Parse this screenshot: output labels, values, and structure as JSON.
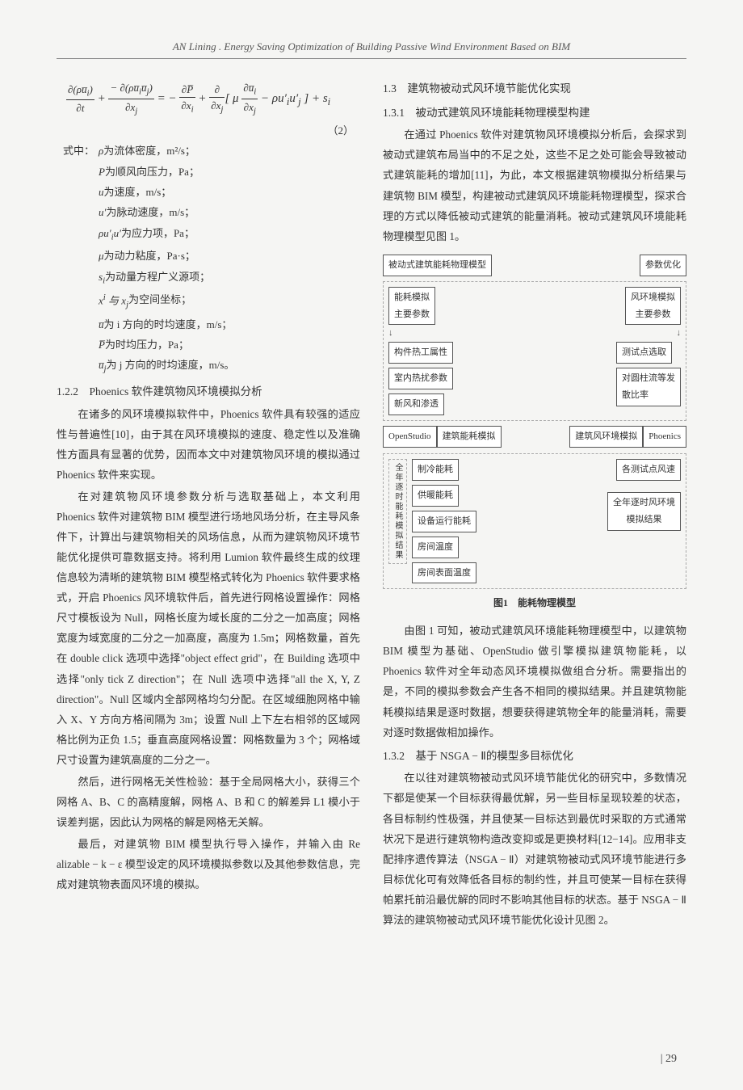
{
  "header": {
    "title": "AN Lining . Energy Saving Optimization of Building Passive Wind Environment Based on BIM"
  },
  "equation": {
    "formula_html": "<span class='frac'><span class='num'>∂(ρu̅<sub>i</sub>)</span><span class='den'>∂t</span></span> + <span class='frac'><span class='num'>− ∂(ρu̅<sub>i</sub>u̅<sub>j</sub>)</span><span class='den'>∂x<sub>j</sub></span></span> = − <span class='frac'><span class='num'>∂P̅</span><span class='den'>∂x<sub>i</sub></span></span> + <span class='frac'><span class='num'>∂</span><span class='den'>∂x<sub>j</sub></span></span>[ μ <span class='frac'><span class='num'>∂u̅<sub>i</sub></span><span class='den'>∂x<sub>j</sub></span></span> − ρu′<sub>i</sub>u′<sub>j</sub> ] + s<sub>i</sub>",
    "number": "（2）"
  },
  "defs": {
    "head": "式中：",
    "items": [
      {
        "sym": "ρ",
        "text": " 为流体密度，m²/s；"
      },
      {
        "sym": "P",
        "text": " 为顺风向压力，Pa；"
      },
      {
        "sym": "u",
        "text": " 为速度，m/s；"
      },
      {
        "sym": "u′",
        "text": "为脉动速度，m/s；"
      },
      {
        "sym": "ρu′<sub>i</sub>u′",
        "text": "为应力项，Pa；"
      },
      {
        "sym": "μ",
        "text": " 为动力粘度，Pa·s；"
      },
      {
        "sym": "s<sub>i</sub>",
        "text": " 为动量方程广义源项；"
      },
      {
        "sym": "x<sup>i</sup> 与 x<sub>j</sub>",
        "text": " 为空间坐标；"
      },
      {
        "sym": "u̅",
        "text": " 为 i 方向的时均速度，m/s；"
      },
      {
        "sym": "P̅",
        "text": " 为时均压力，Pa；"
      },
      {
        "sym": "u̅<sub>j</sub>",
        "text": " 为 j 方向的时均速度，m/s。"
      }
    ]
  },
  "left": {
    "h1": "1.2.2　Phoenics 软件建筑物风环境模拟分析",
    "p1": "在诸多的风环境模拟软件中，Phoenics 软件具有较强的适应性与普遍性[10]，由于其在风环境模拟的速度、稳定性以及准确性方面具有显著的优势，因而本文中对建筑物风环境的模拟通过 Phoenics 软件来实现。",
    "p2": "在对建筑物风环境参数分析与选取基础上，本文利用 Phoenics 软件对建筑物 BIM 模型进行场地风场分析，在主导风条件下，计算出与建筑物相关的风场信息，从而为建筑物风环境节能优化提供可靠数据支持。将利用 Lumion 软件最终生成的纹理信息较为清晰的建筑物 BIM 模型格式转化为 Phoenics 软件要求格式，开启 Phoenics 风环境软件后，首先进行网格设置操作：网格尺寸模板设为 Null，网格长度为域长度的二分之一加高度；网格宽度为域宽度的二分之一加高度，高度为 1.5m；网格数量，首先在 double click 选项中选择\"object effect grid\"，在 Building 选项中选择\"only tick Z direction\"；在 Null 选项中选择\"all the X, Y, Z direction\"。Null 区域内全部网格均匀分配。在区域细胞网格中输入 X、Y 方向方格间隔为 3m；设置 Null 上下左右相邻的区域网格比例为正负 1.5；垂直高度网格设置：网格数量为 3 个；网格域尺寸设置为建筑高度的二分之一。",
    "p3": "然后，进行网格无关性检验：基于全局网格大小，获得三个网格 A、B、C 的高精度解，网格 A、B 和 C 的解差异 L1 模小于误差判据，因此认为网格的解是网格无关解。",
    "p4": "最后，对建筑物 BIM 模型执行导入操作，并输入由 Re alizable − k − ε 模型设定的风环境模拟参数以及其他参数信息，完成对建筑物表面风环境的模拟。"
  },
  "right": {
    "h1": "1.3　建筑物被动式风环境节能优化实现",
    "h2": "1.3.1　被动式建筑风环境能耗物理模型构建",
    "p1": "在通过 Phoenics 软件对建筑物风环境模拟分析后，会探求到被动式建筑布局当中的不足之处，这些不足之处可能会导致被动式建筑能耗的增加[11]，为此，本文根据建筑物模拟分析结果与建筑物 BIM 模型，构建被动式建筑风环境能耗物理模型，探求合理的方式以降低被动式建筑的能量消耗。被动式建筑风环境能耗物理模型见图 1。",
    "fig_caption": "图1　能耗物理模型",
    "p2": "由图 1 可知，被动式建筑风环境能耗物理模型中，以建筑物 BIM 模型为基础、OpenStudio 做引擎模拟建筑物能耗，以 Phoenics 软件对全年动态风环境模拟做组合分析。需要指出的是，不同的模拟参数会产生各不相同的模拟结果。并且建筑物能耗模拟结果是逐时数据，想要获得建筑物全年的能量消耗，需要对逐时数据做相加操作。",
    "h3": "1.3.2　基于 NSGA − Ⅱ的模型多目标优化",
    "p3": "在以往对建筑物被动式风环境节能优化的研究中，多数情况下都是使某一个目标获得最优解，另一些目标呈现较差的状态，各目标制约性极强，并且使某一目标达到最优时采取的方式通常状况下是进行建筑物构造改变抑或是更换材料[12−14]。应用非支配排序遗传算法（NSGA − Ⅱ）对建筑物被动式风环境节能进行多目标优化可有效降低各目标的制约性，并且可使某一目标在获得帕累托前沿最优解的同时不影响其他目标的状态。基于 NSGA − Ⅱ算法的建筑物被动式风环境节能优化设计见图 2。"
  },
  "diagram": {
    "top1": "被动式建筑能耗物理模型",
    "top2": "参数优化",
    "leftHead": "能耗模拟\n主要参数",
    "rightHead": "风环境模拟\n主要参数",
    "leftItems": [
      "构件热工属性",
      "室内热扰参数",
      "新风和渗透"
    ],
    "rightItems": [
      "测试点选取",
      "对圆柱流等发\n散比率"
    ],
    "mid1a": "OpenStudio",
    "mid1b": "建筑能耗模拟",
    "mid2a": "建筑风环境模拟",
    "mid2b": "Phoenics",
    "sideLabel": "全年逐时能耗模拟结果",
    "bottomLeft": [
      "制冷能耗",
      "供暖能耗",
      "设备运行能耗",
      "房间温度",
      "房间表面温度"
    ],
    "bottomRight1": "各测试点风速",
    "bottomRight2": "全年逐时风环境\n模拟结果"
  },
  "page_number": "29"
}
